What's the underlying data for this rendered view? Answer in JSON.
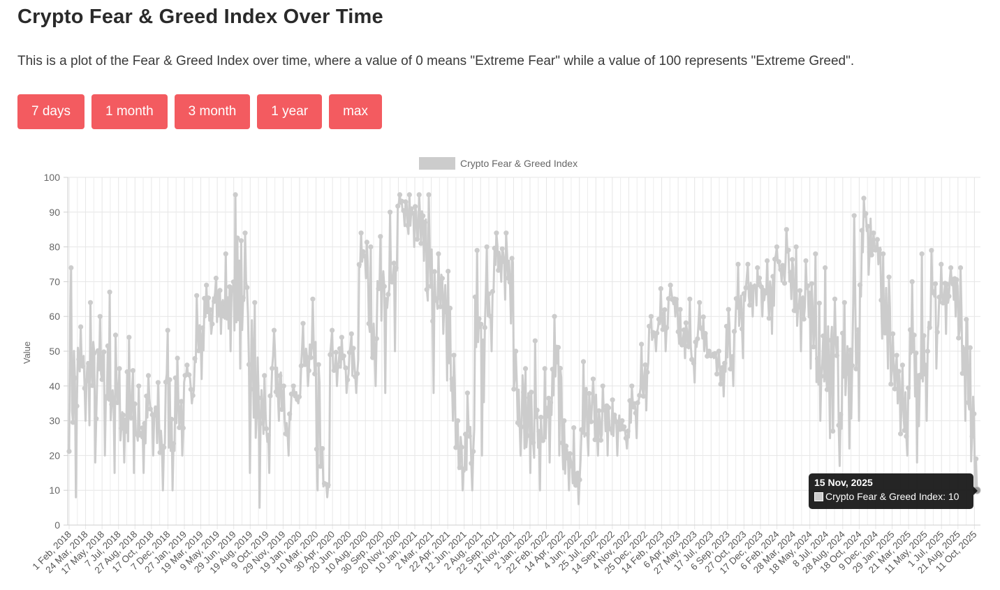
{
  "page": {
    "title": "Crypto Fear & Greed Index Over Time",
    "description": "This is a plot of the Fear & Greed Index over time, where a value of 0 means \"Extreme Fear\" while a value of 100 represents \"Extreme Greed\"."
  },
  "range_buttons": [
    {
      "label": "7 days"
    },
    {
      "label": "1 month"
    },
    {
      "label": "3 month"
    },
    {
      "label": "1 year"
    },
    {
      "label": "max"
    }
  ],
  "tooltip": {
    "date": "15 Nov, 2025",
    "series": "Crypto Fear & Greed Index",
    "value": "10",
    "text": "Crypto Fear & Greed Index: 10"
  },
  "chart_data": {
    "type": "line",
    "title": "",
    "xlabel": "",
    "ylabel": "Value",
    "ylim": [
      0,
      100
    ],
    "yticks": [
      0,
      10,
      20,
      30,
      40,
      50,
      60,
      70,
      80,
      90,
      100
    ],
    "grid": true,
    "legend_position": "top",
    "series_color": "#cccccc",
    "x_tick_labels": [
      "1 Feb, 2018",
      "24 Mar, 2018",
      "17 May, 2018",
      "7 Jul, 2018",
      "27 Aug, 2018",
      "17 Oct, 2018",
      "7 Dec, 2018",
      "27 Jan, 2019",
      "19 Mar, 2019",
      "9 May, 2019",
      "29 Jun, 2019",
      "19 Aug, 2019",
      "9 Oct, 2019",
      "29 Nov, 2019",
      "19 Jan, 2020",
      "10 Mar, 2020",
      "30 Apr, 2020",
      "20 Jun, 2020",
      "10 Aug, 2020",
      "30 Sep, 2020",
      "20 Nov, 2020",
      "10 Jan, 2021",
      "2 Mar, 2021",
      "22 Apr, 2021",
      "12 Jun, 2021",
      "2 Aug, 2021",
      "22 Sep, 2021",
      "12 Nov, 2021",
      "2 Jan, 2022",
      "22 Feb, 2022",
      "14 Apr, 2022",
      "4 Jun, 2022",
      "25 Jul, 2022",
      "14 Sep, 2022",
      "4 Nov, 2022",
      "25 Dec, 2022",
      "14 Feb, 2023",
      "6 Apr, 2023",
      "27 May, 2023",
      "17 Jul, 2023",
      "6 Sep, 2023",
      "27 Oct, 2023",
      "17 Dec, 2023",
      "6 Feb, 2024",
      "28 Mar, 2024",
      "18 May, 2024",
      "8 Jul, 2024",
      "28 Aug, 2024",
      "18 Oct, 2024",
      "9 Dec, 2024",
      "29 Jan, 2025",
      "21 Mar, 2025",
      "11 May, 2025",
      "1 Jul, 2025",
      "21 Aug, 2025",
      "11 Oct, 2025"
    ],
    "series": [
      {
        "name": "Crypto Fear & Greed Index",
        "x": [
          "2018-02",
          "2018-03",
          "2018-04",
          "2018-05",
          "2018-06",
          "2018-07",
          "2018-08",
          "2018-09",
          "2018-10",
          "2018-11",
          "2018-12",
          "2019-01",
          "2019-02",
          "2019-03",
          "2019-04",
          "2019-05",
          "2019-06",
          "2019-07",
          "2019-08",
          "2019-09",
          "2019-10",
          "2019-11",
          "2019-12",
          "2020-01",
          "2020-02",
          "2020-03",
          "2020-04",
          "2020-05",
          "2020-06",
          "2020-07",
          "2020-08",
          "2020-09",
          "2020-10",
          "2020-11",
          "2020-12",
          "2021-01",
          "2021-02",
          "2021-03",
          "2021-04",
          "2021-05",
          "2021-06",
          "2021-07",
          "2021-08",
          "2021-09",
          "2021-10",
          "2021-11",
          "2021-12",
          "2022-01",
          "2022-02",
          "2022-03",
          "2022-04",
          "2022-05",
          "2022-06",
          "2022-07",
          "2022-08",
          "2022-09",
          "2022-10",
          "2022-11",
          "2022-12",
          "2023-01",
          "2023-02",
          "2023-03",
          "2023-04",
          "2023-05",
          "2023-06",
          "2023-07",
          "2023-08",
          "2023-09",
          "2023-10",
          "2023-11",
          "2023-12",
          "2024-01",
          "2024-02",
          "2024-03",
          "2024-04",
          "2024-05",
          "2024-06",
          "2024-07",
          "2024-08",
          "2024-09",
          "2024-10",
          "2024-11",
          "2024-12",
          "2025-01",
          "2025-02",
          "2025-03",
          "2025-04",
          "2025-05",
          "2025-06",
          "2025-07",
          "2025-08",
          "2025-09",
          "2025-10",
          "2025-11"
        ],
        "low": [
          8,
          30,
          18,
          20,
          15,
          18,
          15,
          15,
          20,
          10,
          10,
          20,
          35,
          42,
          55,
          55,
          50,
          45,
          15,
          5,
          15,
          30,
          20,
          35,
          40,
          10,
          8,
          40,
          38,
          38,
          71,
          40,
          38,
          50,
          86,
          80,
          76,
          38,
          55,
          30,
          10,
          10,
          20,
          50,
          70,
          58,
          20,
          15,
          10,
          18,
          20,
          10,
          6,
          20,
          20,
          20,
          20,
          22,
          25,
          33,
          50,
          50,
          60,
          48,
          41,
          50,
          48,
          37,
          40,
          48,
          60,
          60,
          55,
          70,
          65,
          50,
          45,
          30,
          25,
          17,
          22,
          30,
          72,
          75,
          45,
          35,
          20,
          18,
          30,
          45,
          55,
          60,
          30,
          10
        ],
        "high": [
          74,
          57,
          64,
          60,
          67,
          45,
          54,
          40,
          43,
          41,
          56,
          48,
          46,
          66,
          69,
          71,
          78,
          95,
          84,
          64,
          43,
          56,
          40,
          40,
          58,
          65,
          22,
          56,
          54,
          55,
          84,
          80,
          83,
          90,
          95,
          95,
          95,
          95,
          78,
          73,
          30,
          38,
          79,
          80,
          84,
          84,
          50,
          45,
          53,
          45,
          60,
          30,
          28,
          47,
          42,
          40,
          36,
          30,
          40,
          52,
          60,
          68,
          69,
          62,
          65,
          64,
          50,
          50,
          62,
          75,
          75,
          74,
          76,
          80,
          85,
          80,
          76,
          78,
          74,
          65,
          64,
          89,
          94,
          84,
          78,
          55,
          46,
          70,
          78,
          79,
          75,
          74,
          74,
          51
        ]
      }
    ]
  }
}
